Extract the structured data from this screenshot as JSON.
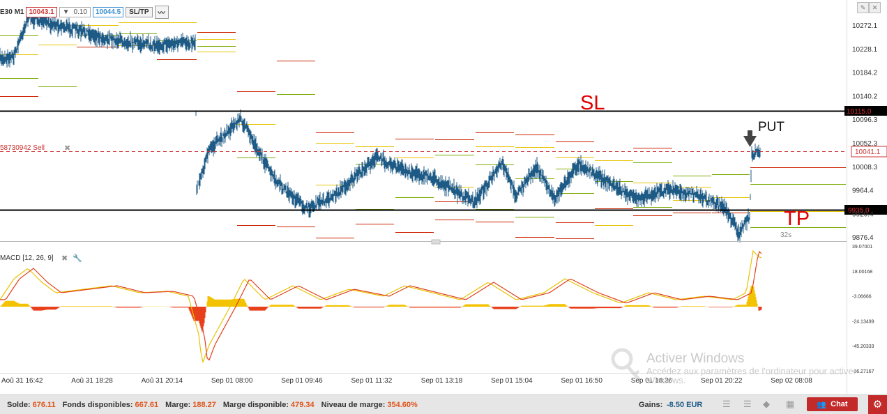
{
  "toolbar": {
    "symbol": "E30 M1",
    "sell_price": "10043.1",
    "quantity": "0.10",
    "buy_price": "10044.5",
    "sltp_label": "SL/TP"
  },
  "price_axis": {
    "ticks": [
      "10272.1",
      "10228.1",
      "10184.2",
      "10140.2",
      "10096.3",
      "10052.3",
      "10008.3",
      "9964.4",
      "9920.4",
      "9876.4"
    ],
    "sl_value": "10115.0",
    "current_value": "10041.1",
    "tp_value": "9935.0"
  },
  "annotations": {
    "sl": "SL",
    "tp": "TP",
    "put": "PUT",
    "countdown": "32s",
    "order_label": "58730942 Sell"
  },
  "indicator": {
    "label": "MACD [12, 26, 9]",
    "ticks": [
      "39.07001",
      "18.00168",
      "-3.06666",
      "-24.13499",
      "-45.20333",
      "-66.27167"
    ]
  },
  "time_axis": [
    "Aoû 31 16:42",
    "Aoû 31 18:28",
    "Aoû 31 20:14",
    "Sep 01 08:00",
    "Sep 01 09:46",
    "Sep 01 11:32",
    "Sep 01 13:18",
    "Sep 01 15:04",
    "Sep 01 16:50",
    "Sep 01 18:36",
    "Sep 01 20:22",
    "Sep 02 08:08"
  ],
  "status": {
    "solde_label": "Solde:",
    "solde_value": "676.11",
    "fonds_label": "Fonds disponibles:",
    "fonds_value": "667.61",
    "marge_label": "Marge:",
    "marge_value": "188.27",
    "marge_dispo_label": "Marge disponible:",
    "marge_dispo_value": "479.34",
    "niveau_label": "Niveau de marge:",
    "niveau_value": "354.60%",
    "gains_label": "Gains:",
    "gains_value": "-8.50 EUR",
    "chat_label": "Chat"
  },
  "watermark": {
    "title": "Activer Windows",
    "subtitle": "Accédez aux paramètres de l'ordinateur pour activer Windows."
  },
  "colors": {
    "sell": "#cc3333",
    "buy": "#3a8fd0",
    "candles": "#1d5a85",
    "macd_line": "#e8c200",
    "signal_line": "#e0401b",
    "pivot_red": "#cc2200",
    "pivot_green": "#77aa00",
    "chat": "#c32a2a"
  }
}
